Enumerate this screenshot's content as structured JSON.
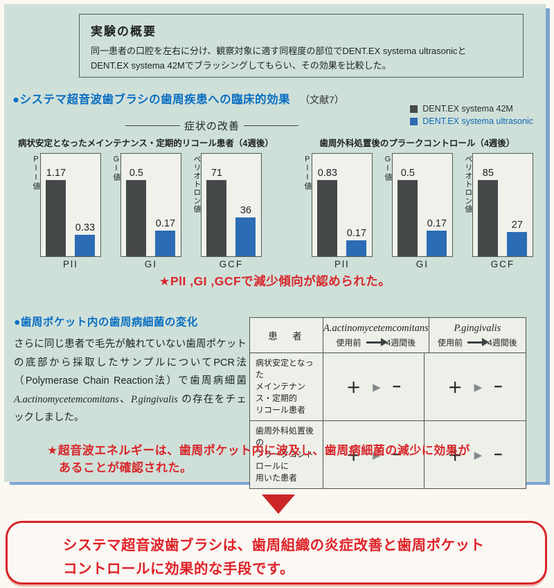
{
  "overview": {
    "title": "実験の概要",
    "line1": "同一患者の口腔を左右に分け、観察対象に適す同程度の部位でDENT.EX systema ultrasonicと",
    "line2": "DENT.EX systema 42Mでブラッシングしてもらい、その効果を比較した。"
  },
  "section1": {
    "heading": "●システマ超音波歯ブラシの歯周疾患への臨床的効果",
    "reference": "（文献7）",
    "subtitle": "症状の改善"
  },
  "legend": {
    "items": [
      {
        "label": "DENT.EX systema 42M",
        "color": "#454849",
        "text_color": "#2a2e2e"
      },
      {
        "label": "DENT.EX systema ultrasonic",
        "color": "#2c6cb4",
        "text_color": "#1467b4"
      }
    ]
  },
  "chart_data": {
    "type": "bar",
    "series": [
      {
        "name": "DENT.EX systema 42M",
        "color": "#454849"
      },
      {
        "name": "DENT.EX systema ultrasonic",
        "color": "#2c6cb4"
      }
    ],
    "groups": [
      {
        "title": "病状安定となったメインテナンス・定期的リコール患者（4週後）",
        "charts": [
          {
            "axis_label": "PlI値",
            "x_label": "PlI",
            "values": [
              1.17,
              0.33
            ]
          },
          {
            "axis_label": "GI値",
            "x_label": "GI",
            "values": [
              0.5,
              0.17
            ]
          },
          {
            "axis_label": "ペリオトロン値",
            "x_label": "GCF",
            "values": [
              71,
              36
            ]
          }
        ]
      },
      {
        "title": "歯周外科処置後のプラークコントロール（4週後）",
        "charts": [
          {
            "axis_label": "PlI値",
            "x_label": "PlI",
            "values": [
              0.83,
              0.17
            ]
          },
          {
            "axis_label": "GI値",
            "x_label": "GI",
            "values": [
              0.5,
              0.17
            ]
          },
          {
            "axis_label": "ペリオトロン値",
            "x_label": "GCF",
            "values": [
              85,
              27
            ]
          }
        ]
      }
    ]
  },
  "finding1": "★PlI ,GI ,GCFで減少傾向が認められた。",
  "section2": {
    "heading": "●歯周ポケット内の歯周病細菌の変化",
    "body_p1": "さらに同じ患者で毛先が触れていない歯周ポケットの底部から採取したサンプルについてPCR法（Polymerase Chain Reaction法）で歯周病細菌 ",
    "bacteria1": "A.actinomycetemcomitans",
    "body_p2": "、",
    "bacteria2": "P.gingivalis",
    "body_p3": " の存在をチェックしました。"
  },
  "table": {
    "patient_header": "患　者",
    "columns": [
      {
        "name": "A.actinomycetemcomitans",
        "before": "使用前",
        "after": "4週間後"
      },
      {
        "name": "P.gingivalis",
        "before": "使用前",
        "after": "4週間後"
      }
    ],
    "rows": [
      {
        "label_lines": [
          "病状安定となった",
          "メインテナンス・定期的",
          "リコール患者"
        ]
      },
      {
        "label_lines": [
          "歯周外科処置後の",
          "プラークコントロールに",
          "用いた患者"
        ]
      }
    ],
    "symbols": {
      "plus": "＋",
      "arrow": "▶",
      "minus": "−"
    }
  },
  "finding2": {
    "line1": "★超音波エネルギーは、歯周ポケット内に波及し、歯周病細菌の減少に効果が",
    "line2": "あることが確認された。"
  },
  "conclusion": {
    "line1": "システマ超音波歯ブラシは、歯周組織の炎症改善と歯周ポケット",
    "line2": "コントロールに効果的な手段です。"
  },
  "colors": {
    "panel_background": "#cfe0d9",
    "panel_shadow": "#7aa3cf",
    "heading_blue": "#0a6fc2",
    "accent_red": "#d8262b",
    "bar_dark": "#454849",
    "bar_blue": "#2c6cb4"
  }
}
